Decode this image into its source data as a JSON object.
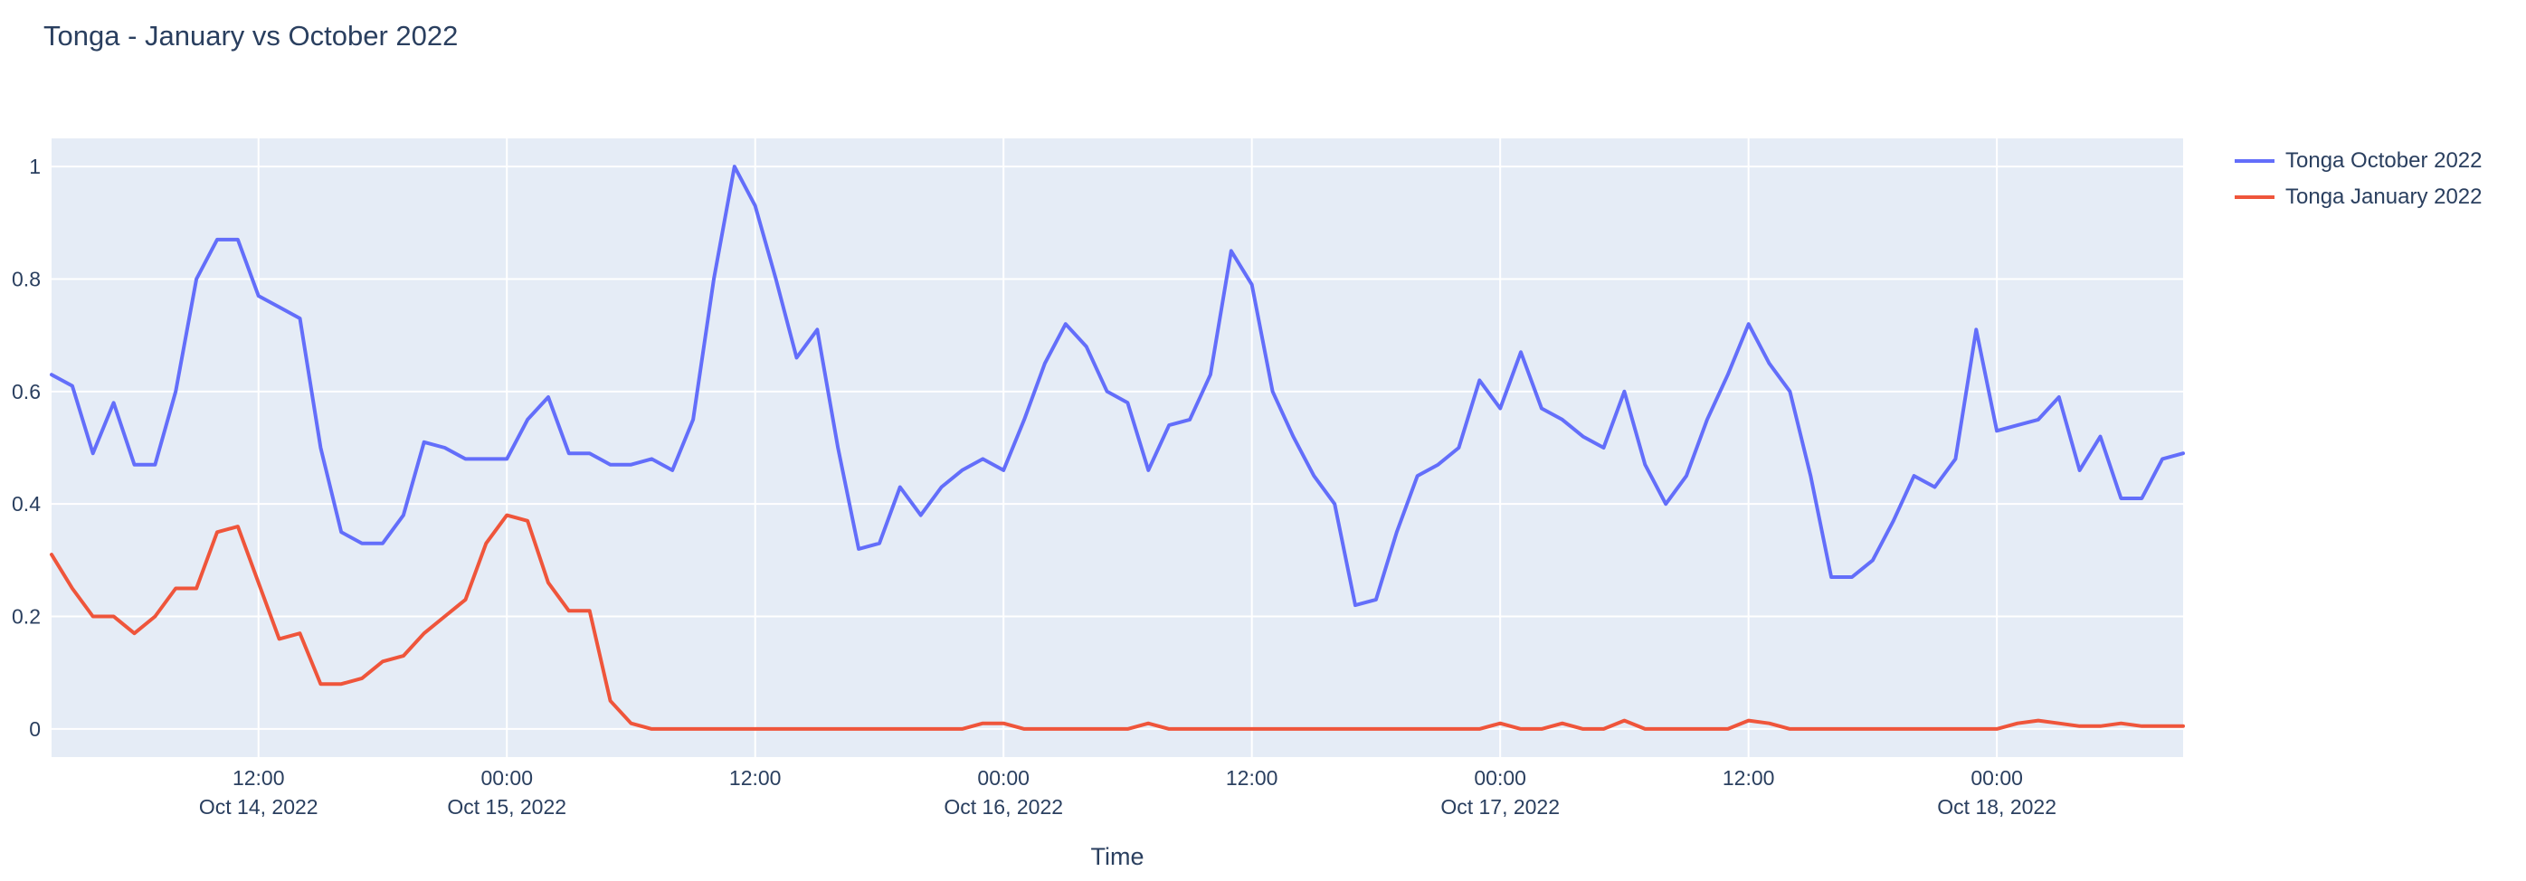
{
  "title": "Tonga - January vs October 2022",
  "colors": {
    "plot_bg": "#E5ECF6",
    "grid": "#FFFFFF",
    "text": "#2A3F5F",
    "series_october": "#636EFA",
    "series_january": "#EF553B"
  },
  "chart_data": {
    "type": "line",
    "title": "Tonga - January vs October 2022",
    "xlabel": "Time",
    "ylabel": "",
    "grid": true,
    "legend_position": "right-top-outside",
    "ylim": [
      -0.05,
      1.05
    ],
    "yticks": [
      {
        "value": 0,
        "label": "0"
      },
      {
        "value": 0.2,
        "label": "0.2"
      },
      {
        "value": 0.4,
        "label": "0.4"
      },
      {
        "value": 0.6,
        "label": "0.6"
      },
      {
        "value": 0.8,
        "label": "0.8"
      },
      {
        "value": 1,
        "label": "1"
      }
    ],
    "x_start_time": "2022-10-14 02:00",
    "x_step_hours": 1,
    "x_range_hours": [
      0,
      103
    ],
    "xticks": [
      {
        "hour": 10,
        "time": "12:00",
        "date": "Oct 14, 2022"
      },
      {
        "hour": 22,
        "time": "00:00",
        "date": "Oct 15, 2022"
      },
      {
        "hour": 34,
        "time": "12:00",
        "date": ""
      },
      {
        "hour": 46,
        "time": "00:00",
        "date": "Oct 16, 2022"
      },
      {
        "hour": 58,
        "time": "12:00",
        "date": ""
      },
      {
        "hour": 70,
        "time": "00:00",
        "date": "Oct 17, 2022"
      },
      {
        "hour": 82,
        "time": "12:00",
        "date": ""
      },
      {
        "hour": 94,
        "time": "00:00",
        "date": "Oct 18, 2022"
      }
    ],
    "series": [
      {
        "name": "Tonga October 2022",
        "color": "#636EFA",
        "values": [
          0.63,
          0.61,
          0.49,
          0.58,
          0.47,
          0.47,
          0.6,
          0.8,
          0.87,
          0.87,
          0.77,
          0.75,
          0.73,
          0.5,
          0.35,
          0.33,
          0.33,
          0.38,
          0.51,
          0.5,
          0.48,
          0.48,
          0.48,
          0.55,
          0.59,
          0.49,
          0.49,
          0.47,
          0.47,
          0.48,
          0.46,
          0.55,
          0.8,
          1.0,
          0.93,
          0.8,
          0.66,
          0.71,
          0.5,
          0.32,
          0.33,
          0.43,
          0.38,
          0.43,
          0.46,
          0.48,
          0.46,
          0.55,
          0.65,
          0.72,
          0.68,
          0.6,
          0.58,
          0.46,
          0.54,
          0.55,
          0.63,
          0.85,
          0.79,
          0.6,
          0.52,
          0.45,
          0.4,
          0.22,
          0.23,
          0.35,
          0.45,
          0.47,
          0.5,
          0.62,
          0.57,
          0.67,
          0.57,
          0.55,
          0.52,
          0.5,
          0.6,
          0.47,
          0.4,
          0.45,
          0.55,
          0.63,
          0.72,
          0.65,
          0.6,
          0.45,
          0.27,
          0.27,
          0.3,
          0.37,
          0.45,
          0.43,
          0.48,
          0.71,
          0.53,
          0.54,
          0.55,
          0.59,
          0.46,
          0.52,
          0.41,
          0.41,
          0.48,
          0.49
        ]
      },
      {
        "name": "Tonga January 2022",
        "color": "#EF553B",
        "values": [
          0.31,
          0.25,
          0.2,
          0.2,
          0.17,
          0.2,
          0.25,
          0.25,
          0.35,
          0.36,
          0.26,
          0.16,
          0.17,
          0.08,
          0.08,
          0.09,
          0.12,
          0.13,
          0.17,
          0.2,
          0.23,
          0.33,
          0.38,
          0.37,
          0.26,
          0.21,
          0.21,
          0.05,
          0.01,
          0.0,
          0.0,
          0.0,
          0.0,
          0.0,
          0.0,
          0.0,
          0.0,
          0.0,
          0.0,
          0.0,
          0.0,
          0.0,
          0.0,
          0.0,
          0.0,
          0.01,
          0.01,
          0.0,
          0.0,
          0.0,
          0.0,
          0.0,
          0.0,
          0.01,
          0.0,
          0.0,
          0.0,
          0.0,
          0.0,
          0.0,
          0.0,
          0.0,
          0.0,
          0.0,
          0.0,
          0.0,
          0.0,
          0.0,
          0.0,
          0.0,
          0.01,
          0.0,
          0.0,
          0.01,
          0.0,
          0.0,
          0.015,
          0.0,
          0.0,
          0.0,
          0.0,
          0.0,
          0.015,
          0.01,
          0.0,
          0.0,
          0.0,
          0.0,
          0.0,
          0.0,
          0.0,
          0.0,
          0.0,
          0.0,
          0.0,
          0.01,
          0.015,
          0.01,
          0.005,
          0.005,
          0.01,
          0.005,
          0.005,
          0.005
        ]
      }
    ]
  }
}
